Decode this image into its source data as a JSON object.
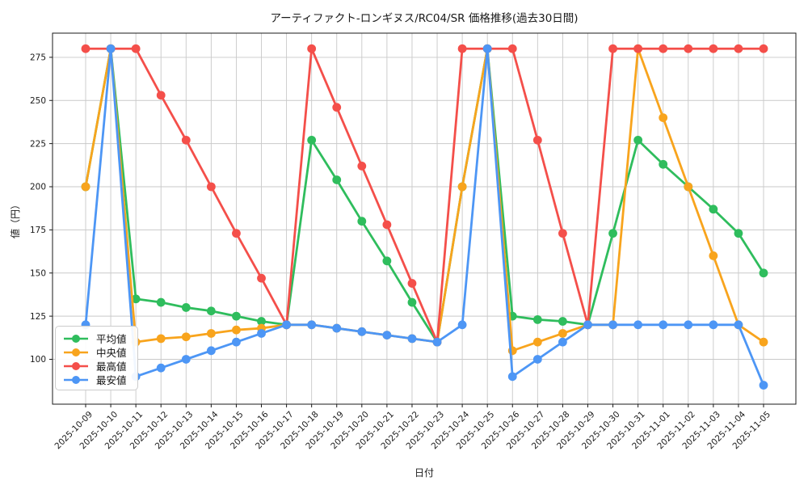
{
  "chart_data": {
    "type": "line",
    "title": "アーティファクト-ロンギヌス/RC04/SR 価格推移(過去30日間)",
    "xlabel": "日付",
    "ylabel": "値（円）",
    "x": [
      "2025-10-09",
      "2025-10-10",
      "2025-10-11",
      "2025-10-12",
      "2025-10-13",
      "2025-10-14",
      "2025-10-15",
      "2025-10-16",
      "2025-10-17",
      "2025-10-18",
      "2025-10-19",
      "2025-10-20",
      "2025-10-21",
      "2025-10-22",
      "2025-10-23",
      "2025-10-24",
      "2025-10-25",
      "2025-10-26",
      "2025-10-27",
      "2025-10-28",
      "2025-10-29",
      "2025-10-30",
      "2025-10-31",
      "2025-11-01",
      "2025-11-02",
      "2025-11-03",
      "2025-11-04",
      "2025-11-05"
    ],
    "series": [
      {
        "name": "平均値",
        "key": "average",
        "color": "#2fbd5d",
        "values": [
          200,
          280,
          135,
          133,
          130,
          128,
          125,
          122,
          120,
          227,
          204,
          180,
          157,
          133,
          110,
          200,
          280,
          125,
          123,
          122,
          120,
          173,
          227,
          213,
          200,
          187,
          173,
          150
        ]
      },
      {
        "name": "中央値",
        "key": "median",
        "color": "#f8a41d",
        "values": [
          200,
          280,
          110,
          112,
          113,
          115,
          117,
          118,
          120,
          120,
          118,
          116,
          114,
          112,
          110,
          200,
          280,
          105,
          110,
          115,
          120,
          120,
          280,
          240,
          200,
          160,
          120,
          110
        ]
      },
      {
        "name": "最高値",
        "key": "max",
        "color": "#f44f4a",
        "values": [
          280,
          280,
          280,
          253,
          227,
          200,
          173,
          147,
          120,
          280,
          246,
          212,
          178,
          144,
          110,
          280,
          280,
          280,
          227,
          173,
          120,
          280,
          280,
          280,
          280,
          280,
          280,
          280
        ]
      },
      {
        "name": "最安値",
        "key": "min",
        "color": "#4d96f5",
        "values": [
          120,
          280,
          90,
          95,
          100,
          105,
          110,
          115,
          120,
          120,
          118,
          116,
          114,
          112,
          110,
          120,
          280,
          90,
          100,
          110,
          120,
          120,
          120,
          120,
          120,
          120,
          120,
          85
        ]
      }
    ],
    "yticks": [
      100,
      125,
      150,
      175,
      200,
      225,
      250,
      275
    ],
    "ylim": [
      74,
      289
    ],
    "grid": true,
    "legend_position": "lower-left",
    "grid_color": "#c9c9c9",
    "spine_color": "#1a1a1a"
  }
}
